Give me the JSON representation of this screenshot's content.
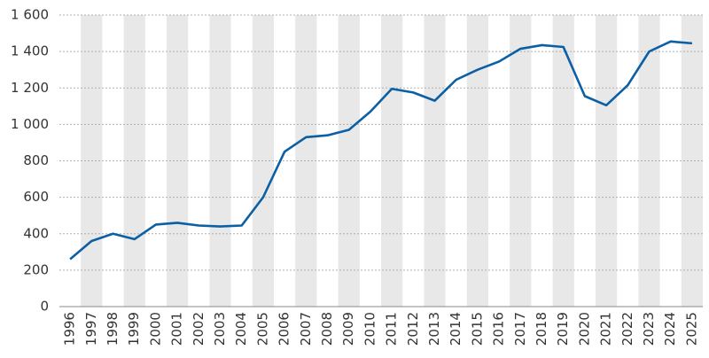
{
  "chart_data": {
    "type": "line",
    "categories": [
      "1996",
      "1997",
      "1998",
      "1999",
      "2000",
      "2001",
      "2002",
      "2003",
      "2004",
      "2005",
      "2006",
      "2007",
      "2008",
      "2009",
      "2010",
      "2011",
      "2012",
      "2013",
      "2014",
      "2015",
      "2016",
      "2017",
      "2018",
      "2019",
      "2020",
      "2021",
      "2022",
      "2023",
      "2024",
      "2025"
    ],
    "series": [
      {
        "color": "#0b5fa5",
        "values": [
          260,
          360,
          400,
          370,
          450,
          460,
          445,
          440,
          445,
          600,
          850,
          930,
          940,
          970,
          1070,
          1195,
          1175,
          1130,
          1245,
          1300,
          1345,
          1415,
          1435,
          1425,
          1155,
          1105,
          1215,
          1400,
          1455,
          1445
        ]
      }
    ],
    "ylim": [
      0,
      1600
    ],
    "yticks": [
      0,
      200,
      400,
      600,
      800,
      {
        "value": 1000,
        "label": "1 000"
      },
      {
        "value": 1200,
        "label": "1 200"
      },
      {
        "value": 1400,
        "label": "1 400"
      },
      {
        "value": 1600,
        "label": "1 600"
      }
    ],
    "grid": true,
    "band_color": "#e8e8e8"
  }
}
